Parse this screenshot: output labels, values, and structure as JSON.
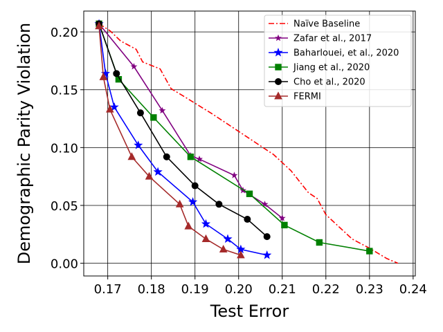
{
  "chart_data": {
    "type": "line",
    "xlabel": "Test Error",
    "ylabel": "Demographic Parity Violation",
    "xlim": [
      0.1645,
      0.2405
    ],
    "ylim": [
      -0.011,
      0.218
    ],
    "xticks": [
      0.17,
      0.18,
      0.19,
      0.2,
      0.21,
      0.22,
      0.23,
      0.24
    ],
    "xtick_labels": [
      "0.17",
      "0.18",
      "0.19",
      "0.20",
      "0.21",
      "0.22",
      "0.23",
      "0.24"
    ],
    "yticks": [
      0.0,
      0.05,
      0.1,
      0.15,
      0.2
    ],
    "ytick_labels": [
      "0.00",
      "0.05",
      "0.10",
      "0.15",
      "0.20"
    ],
    "grid": true,
    "legend_position": "top-right",
    "series": [
      {
        "name": "Naïve Baseline",
        "color": "#ff0000",
        "marker": "none",
        "line": "dashdot",
        "points": [
          [
            0.168,
            0.207
          ],
          [
            0.1705,
            0.201
          ],
          [
            0.173,
            0.192
          ],
          [
            0.1765,
            0.185
          ],
          [
            0.178,
            0.174
          ],
          [
            0.182,
            0.168
          ],
          [
            0.1845,
            0.151
          ],
          [
            0.188,
            0.143
          ],
          [
            0.194,
            0.129
          ],
          [
            0.2,
            0.114
          ],
          [
            0.206,
            0.099
          ],
          [
            0.208,
            0.094
          ],
          [
            0.212,
            0.08
          ],
          [
            0.216,
            0.061
          ],
          [
            0.218,
            0.056
          ],
          [
            0.22,
            0.042
          ],
          [
            0.224,
            0.028
          ],
          [
            0.226,
            0.021
          ],
          [
            0.23,
            0.013
          ],
          [
            0.234,
            0.004
          ],
          [
            0.2365,
            0.0
          ]
        ]
      },
      {
        "name": "Zafar et al., 2017",
        "color": "#800080",
        "marker": "star-small",
        "line": "solid",
        "points": [
          [
            0.168,
            0.207
          ],
          [
            0.176,
            0.17
          ],
          [
            0.1825,
            0.132
          ],
          [
            0.189,
            0.093
          ],
          [
            0.191,
            0.09
          ],
          [
            0.199,
            0.076
          ],
          [
            0.201,
            0.063
          ],
          [
            0.206,
            0.051
          ],
          [
            0.21,
            0.039
          ]
        ]
      },
      {
        "name": "Baharlouei, et al., 2020",
        "color": "#0000ff",
        "marker": "star",
        "line": "solid",
        "points": [
          [
            0.168,
            0.207
          ],
          [
            0.1695,
            0.164
          ],
          [
            0.1715,
            0.135
          ],
          [
            0.177,
            0.102
          ],
          [
            0.1815,
            0.079
          ],
          [
            0.1895,
            0.053
          ],
          [
            0.1925,
            0.034
          ],
          [
            0.1975,
            0.021
          ],
          [
            0.2005,
            0.012
          ],
          [
            0.2065,
            0.007
          ]
        ]
      },
      {
        "name": "Jiang et al., 2020",
        "color": "#008000",
        "marker": "square",
        "line": "solid",
        "points": [
          [
            0.168,
            0.207
          ],
          [
            0.1725,
            0.159
          ],
          [
            0.1805,
            0.126
          ],
          [
            0.189,
            0.092
          ],
          [
            0.2025,
            0.06
          ],
          [
            0.2105,
            0.033
          ],
          [
            0.2185,
            0.018
          ],
          [
            0.23,
            0.0105
          ]
        ]
      },
      {
        "name": "Cho et al., 2020",
        "color": "#000000",
        "marker": "circle",
        "line": "solid",
        "points": [
          [
            0.168,
            0.207
          ],
          [
            0.172,
            0.164
          ],
          [
            0.1775,
            0.13
          ],
          [
            0.1835,
            0.092
          ],
          [
            0.19,
            0.067
          ],
          [
            0.1955,
            0.051
          ],
          [
            0.202,
            0.038
          ],
          [
            0.2065,
            0.023
          ]
        ]
      },
      {
        "name": "FERMI",
        "color": "#a52a2a",
        "marker": "triangle",
        "line": "solid",
        "points": [
          [
            0.168,
            0.205
          ],
          [
            0.169,
            0.161
          ],
          [
            0.1705,
            0.133
          ],
          [
            0.1755,
            0.092
          ],
          [
            0.1795,
            0.075
          ],
          [
            0.1865,
            0.051
          ],
          [
            0.1885,
            0.032
          ],
          [
            0.1925,
            0.021
          ],
          [
            0.1965,
            0.012
          ],
          [
            0.2005,
            0.007
          ]
        ]
      }
    ]
  }
}
